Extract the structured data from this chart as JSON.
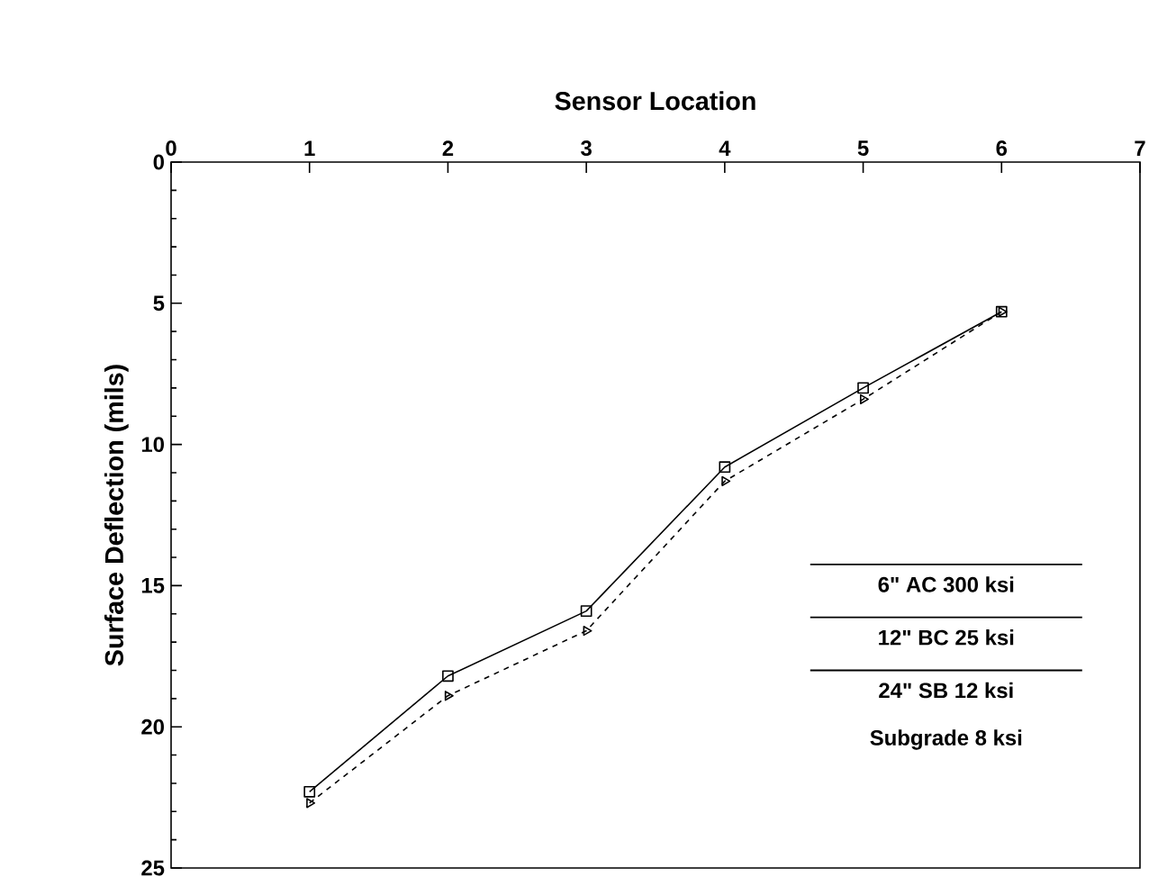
{
  "chart_data": {
    "type": "line",
    "xlabel": "Sensor Location",
    "ylabel": "Surface Deflection (mils)",
    "x": [
      1,
      2,
      3,
      4,
      5,
      6
    ],
    "series": [
      {
        "color": "#000000",
        "values": [
          22.3,
          18.2,
          15.9,
          10.8,
          8.0,
          5.3
        ],
        "marker": "square",
        "line_style": "solid"
      },
      {
        "color": "#000000",
        "values": [
          22.7,
          18.9,
          16.6,
          11.3,
          8.4,
          5.3
        ],
        "marker": "triangle",
        "line_style": "dashed"
      }
    ],
    "xlim": [
      0,
      7
    ],
    "xticks": [
      0,
      1,
      2,
      3,
      4,
      5,
      6,
      7
    ],
    "ylim": [
      25,
      0
    ],
    "yticks": [
      0,
      5,
      10,
      15,
      20,
      25
    ],
    "annotations": [
      "6\" AC 300 ksi",
      "12\" BC 25 ksi",
      "24\" SB 12 ksi",
      "Subgrade 8 ksi"
    ]
  }
}
